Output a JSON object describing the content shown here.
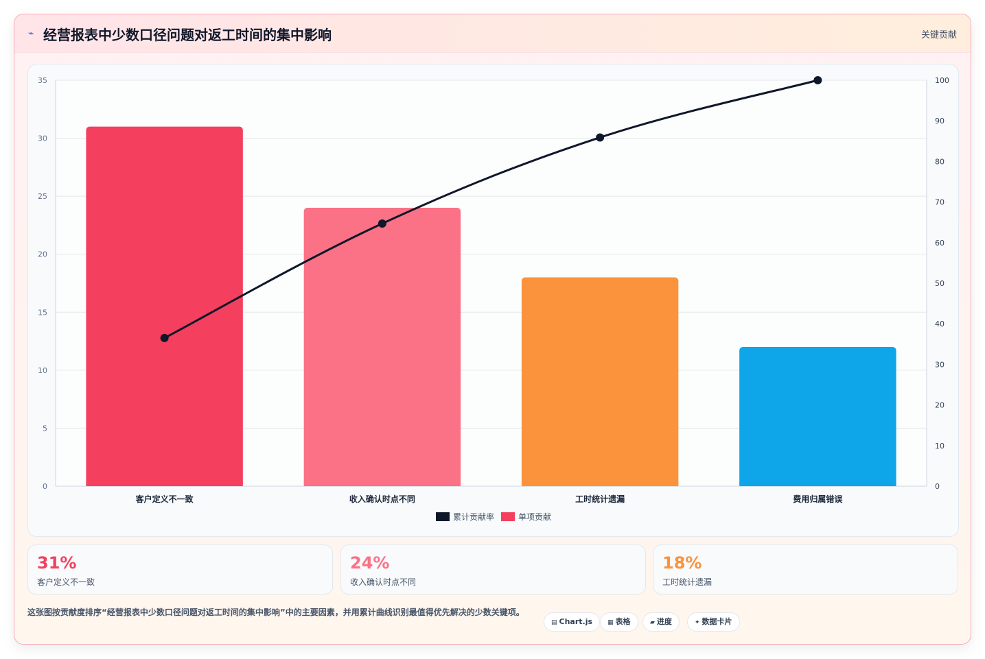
{
  "header": {
    "title": "经营报表中少数口径问题对返工时间的集中影响",
    "tag": "关键贡献",
    "icon": "spark-icon"
  },
  "chart_data": {
    "type": "bar",
    "categories": [
      "客户定义不一致",
      "收入确认时点不同",
      "工时统计遗漏",
      "费用归属错误"
    ],
    "series": [
      {
        "name": "单项贡献",
        "type": "bar",
        "axis": "left",
        "values": [
          31,
          24,
          18,
          12
        ],
        "colors": [
          "#f43f5e",
          "#fb7185",
          "#fb923c",
          "#0ea5e9"
        ]
      },
      {
        "name": "累计贡献率",
        "type": "line",
        "axis": "right",
        "values": [
          36.5,
          64.7,
          85.9,
          100
        ],
        "color": "#0f172a"
      }
    ],
    "ylim": [
      0,
      35
    ],
    "yticks": [
      0,
      5,
      10,
      15,
      20,
      25,
      30,
      35
    ],
    "y2lim": [
      0,
      100
    ],
    "y2ticks": [
      0,
      10,
      20,
      30,
      40,
      50,
      60,
      70,
      80,
      90,
      100
    ],
    "legend": [
      {
        "label": "累计贡献率",
        "color": "#0f172a"
      },
      {
        "label": "单项贡献",
        "color": "#f43f5e"
      }
    ],
    "legend_position": "bottom",
    "grid": true
  },
  "kpis": [
    {
      "value": "31%",
      "label": "客户定义不一致",
      "color": "#f43f5e"
    },
    {
      "value": "24%",
      "label": "收入确认时点不同",
      "color": "#fb7185"
    },
    {
      "value": "18%",
      "label": "工时统计遗漏",
      "color": "#fb923c"
    }
  ],
  "description": "这张图按贡献度排序“经营报表中少数口径问题对返工时间的集中影响”中的主要因素，并用累计曲线识别最值得优先解决的少数关键项。",
  "pills": [
    {
      "icon": "▤",
      "label": "Chart.js"
    },
    {
      "icon": "▦",
      "label": "表格"
    },
    {
      "icon": "▰",
      "label": "进度"
    },
    {
      "icon": "✦",
      "label": "数据卡片"
    }
  ]
}
